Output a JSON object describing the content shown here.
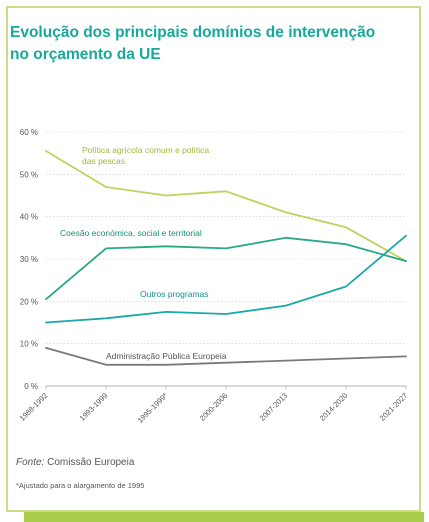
{
  "title_lines": [
    "Evolução dos principais domínios de intervenção",
    "no orçamento da UE"
  ],
  "source": {
    "label": "Fonte:",
    "text": "Comissão Europeia"
  },
  "footnote": "*Ajustado para o alargamento de 1995",
  "colors": {
    "frame": "#c9dd86",
    "bar": "#a9cc4a",
    "title": "#16a99a",
    "grid": "#c8c8c8",
    "axis": "#9a9a9a"
  },
  "chart_data": {
    "type": "line",
    "x": [
      "1988-1992",
      "1993-1999",
      "1995-1999*",
      "2000-2006",
      "2007-2013",
      "2014-2020",
      "2021-2027"
    ],
    "y_ticks": [
      "0 %",
      "10 %",
      "20 %",
      "30 %",
      "40 %",
      "50 %",
      "60 %"
    ],
    "ylim": [
      0,
      60
    ],
    "grid": true,
    "series": [
      {
        "name": "Política agrícola comum e política das pescas",
        "color": "#bcd35f",
        "values": [
          55.5,
          47,
          45,
          46,
          41,
          37.5,
          29.5
        ]
      },
      {
        "name": "Coesão económica, social e territorial",
        "color": "#2aa88a",
        "values": [
          20.5,
          32.5,
          33,
          32.5,
          35,
          33.5,
          29.5
        ]
      },
      {
        "name": "Outros programas",
        "color": "#1aa9a6",
        "values": [
          15,
          16,
          17.5,
          17,
          19,
          23.5,
          35.5
        ]
      },
      {
        "name": "Administração Pública Europeia",
        "color": "#7a7a7a",
        "values": [
          9,
          5,
          5,
          5.5,
          6,
          6.5,
          7
        ]
      }
    ]
  }
}
